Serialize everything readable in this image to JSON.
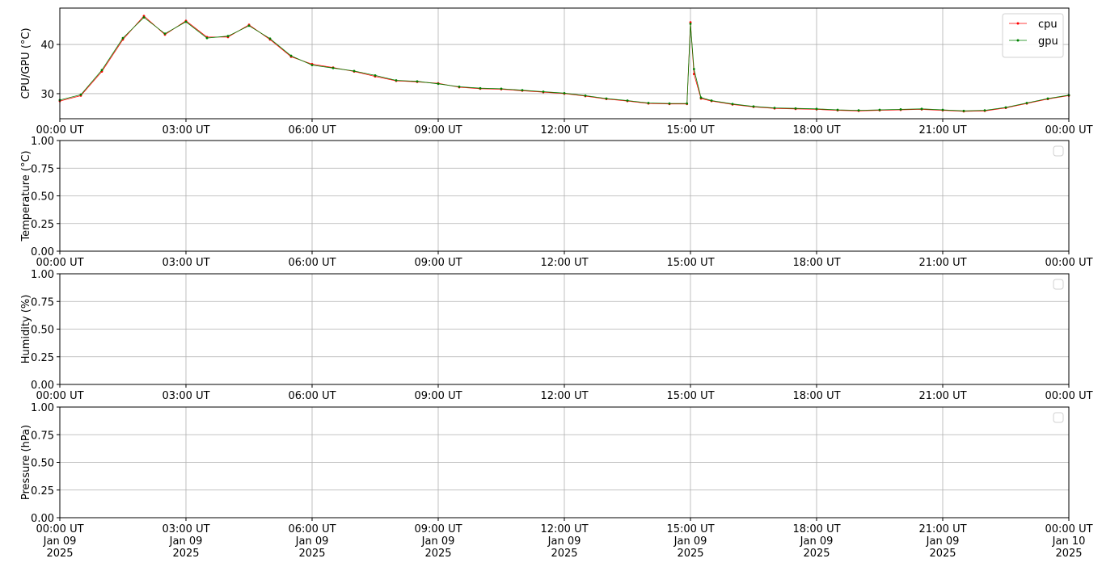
{
  "chart_data": [
    {
      "type": "line",
      "y_label": "CPU/GPU (°C)",
      "legend": "upper right",
      "grid": true,
      "xlim": [
        "2025-01-09T00:00",
        "2025-01-10T00:00"
      ],
      "xticks": [
        {
          "value": "2025-01-09T00:00",
          "label": "00:00 UT"
        },
        {
          "value": "2025-01-09T03:00",
          "label": "03:00 UT"
        },
        {
          "value": "2025-01-09T06:00",
          "label": "06:00 UT"
        },
        {
          "value": "2025-01-09T09:00",
          "label": "09:00 UT"
        },
        {
          "value": "2025-01-09T12:00",
          "label": "12:00 UT"
        },
        {
          "value": "2025-01-09T15:00",
          "label": "15:00 UT"
        },
        {
          "value": "2025-01-09T18:00",
          "label": "18:00 UT"
        },
        {
          "value": "2025-01-09T21:00",
          "label": "21:00 UT"
        },
        {
          "value": "2025-01-10T00:00",
          "label": "00:00 UT"
        }
      ],
      "ylim": [
        24.9,
        47.4
      ],
      "yticks": [
        30,
        40
      ],
      "x": [
        "2025-01-09T00:00",
        "2025-01-09T00:30",
        "2025-01-09T01:00",
        "2025-01-09T01:30",
        "2025-01-09T02:00",
        "2025-01-09T02:30",
        "2025-01-09T03:00",
        "2025-01-09T03:30",
        "2025-01-09T04:00",
        "2025-01-09T04:30",
        "2025-01-09T05:00",
        "2025-01-09T05:30",
        "2025-01-09T06:00",
        "2025-01-09T06:30",
        "2025-01-09T07:00",
        "2025-01-09T07:30",
        "2025-01-09T08:00",
        "2025-01-09T08:30",
        "2025-01-09T09:00",
        "2025-01-09T09:30",
        "2025-01-09T10:00",
        "2025-01-09T10:30",
        "2025-01-09T11:00",
        "2025-01-09T11:30",
        "2025-01-09T12:00",
        "2025-01-09T12:30",
        "2025-01-09T13:00",
        "2025-01-09T13:30",
        "2025-01-09T14:00",
        "2025-01-09T14:30",
        "2025-01-09T14:55",
        "2025-01-09T15:00",
        "2025-01-09T15:05",
        "2025-01-09T15:15",
        "2025-01-09T15:30",
        "2025-01-09T16:00",
        "2025-01-09T16:30",
        "2025-01-09T17:00",
        "2025-01-09T17:30",
        "2025-01-09T18:00",
        "2025-01-09T18:30",
        "2025-01-09T19:00",
        "2025-01-09T19:30",
        "2025-01-09T20:00",
        "2025-01-09T20:30",
        "2025-01-09T21:00",
        "2025-01-09T21:30",
        "2025-01-09T22:00",
        "2025-01-09T22:30",
        "2025-01-09T23:00",
        "2025-01-09T23:30",
        "2025-01-10T00:00"
      ],
      "series": [
        {
          "name": "cpu",
          "color": "#ff0000",
          "values": [
            28.5,
            29.6,
            34.5,
            41.0,
            45.8,
            42.0,
            44.8,
            41.5,
            41.5,
            44.0,
            41.0,
            37.5,
            36.0,
            35.3,
            34.5,
            33.5,
            32.6,
            32.4,
            32.1,
            31.3,
            31.0,
            30.9,
            30.6,
            30.3,
            30.0,
            29.5,
            28.9,
            28.5,
            28.0,
            27.9,
            27.9,
            44.5,
            34.0,
            29.0,
            28.5,
            27.8,
            27.3,
            27.0,
            26.9,
            26.8,
            26.6,
            26.5,
            26.6,
            26.7,
            26.8,
            26.6,
            26.4,
            26.5,
            27.1,
            28.0,
            28.9,
            29.6
          ]
        },
        {
          "name": "gpu",
          "color": "#008000",
          "values": [
            28.7,
            29.8,
            34.8,
            41.3,
            45.5,
            42.2,
            44.6,
            41.3,
            41.7,
            43.8,
            41.2,
            37.7,
            35.8,
            35.2,
            34.6,
            33.7,
            32.7,
            32.5,
            32.0,
            31.4,
            31.1,
            31.0,
            30.7,
            30.4,
            30.1,
            29.6,
            29.0,
            28.6,
            28.1,
            28.0,
            28.0,
            44.2,
            35.0,
            29.2,
            28.6,
            27.9,
            27.4,
            27.1,
            27.0,
            26.9,
            26.7,
            26.6,
            26.7,
            26.8,
            26.9,
            26.7,
            26.5,
            26.6,
            27.2,
            28.1,
            29.0,
            29.7
          ]
        }
      ]
    },
    {
      "type": "line",
      "y_label": "Temperature (°C)",
      "legend": "upper right",
      "grid": true,
      "xlim": [
        "2025-01-09T00:00",
        "2025-01-10T00:00"
      ],
      "xticks": [
        {
          "value": "2025-01-09T00:00",
          "label": "00:00 UT"
        },
        {
          "value": "2025-01-09T03:00",
          "label": "03:00 UT"
        },
        {
          "value": "2025-01-09T06:00",
          "label": "06:00 UT"
        },
        {
          "value": "2025-01-09T09:00",
          "label": "09:00 UT"
        },
        {
          "value": "2025-01-09T12:00",
          "label": "12:00 UT"
        },
        {
          "value": "2025-01-09T15:00",
          "label": "15:00 UT"
        },
        {
          "value": "2025-01-09T18:00",
          "label": "18:00 UT"
        },
        {
          "value": "2025-01-09T21:00",
          "label": "21:00 UT"
        },
        {
          "value": "2025-01-10T00:00",
          "label": "00:00 UT"
        }
      ],
      "ylim": [
        0,
        1
      ],
      "yticks": [
        {
          "value": 0,
          "label": "0.00"
        },
        {
          "value": 0.25,
          "label": "0.25"
        },
        {
          "value": 0.5,
          "label": "0.50"
        },
        {
          "value": 0.75,
          "label": "0.75"
        },
        {
          "value": 1,
          "label": "1.00"
        }
      ],
      "series": []
    },
    {
      "type": "line",
      "y_label": "Humidity (%)",
      "legend": "upper right",
      "grid": true,
      "xlim": [
        "2025-01-09T00:00",
        "2025-01-10T00:00"
      ],
      "xticks": [
        {
          "value": "2025-01-09T00:00",
          "label": "00:00 UT"
        },
        {
          "value": "2025-01-09T03:00",
          "label": "03:00 UT"
        },
        {
          "value": "2025-01-09T06:00",
          "label": "06:00 UT"
        },
        {
          "value": "2025-01-09T09:00",
          "label": "09:00 UT"
        },
        {
          "value": "2025-01-09T12:00",
          "label": "12:00 UT"
        },
        {
          "value": "2025-01-09T15:00",
          "label": "15:00 UT"
        },
        {
          "value": "2025-01-09T18:00",
          "label": "18:00 UT"
        },
        {
          "value": "2025-01-09T21:00",
          "label": "21:00 UT"
        },
        {
          "value": "2025-01-10T00:00",
          "label": "00:00 UT"
        }
      ],
      "ylim": [
        0,
        1
      ],
      "yticks": [
        {
          "value": 0,
          "label": "0.00"
        },
        {
          "value": 0.25,
          "label": "0.25"
        },
        {
          "value": 0.5,
          "label": "0.50"
        },
        {
          "value": 0.75,
          "label": "0.75"
        },
        {
          "value": 1,
          "label": "1.00"
        }
      ],
      "series": []
    },
    {
      "type": "line",
      "y_label": "Pressure (hPa)",
      "legend": "upper right",
      "grid": true,
      "xlim": [
        "2025-01-09T00:00",
        "2025-01-10T00:00"
      ],
      "xticks": [
        {
          "value": "2025-01-09T00:00",
          "label": "00:00 UT\nJan 09\n2025"
        },
        {
          "value": "2025-01-09T03:00",
          "label": "03:00 UT\nJan 09\n2025"
        },
        {
          "value": "2025-01-09T06:00",
          "label": "06:00 UT\nJan 09\n2025"
        },
        {
          "value": "2025-01-09T09:00",
          "label": "09:00 UT\nJan 09\n2025"
        },
        {
          "value": "2025-01-09T12:00",
          "label": "12:00 UT\nJan 09\n2025"
        },
        {
          "value": "2025-01-09T15:00",
          "label": "15:00 UT\nJan 09\n2025"
        },
        {
          "value": "2025-01-09T18:00",
          "label": "18:00 UT\nJan 09\n2025"
        },
        {
          "value": "2025-01-09T21:00",
          "label": "21:00 UT\nJan 09\n2025"
        },
        {
          "value": "2025-01-10T00:00",
          "label": "00:00 UT\nJan 10\n2025"
        }
      ],
      "ylim": [
        0,
        1
      ],
      "yticks": [
        {
          "value": 0,
          "label": "0.00"
        },
        {
          "value": 0.25,
          "label": "0.25"
        },
        {
          "value": 0.5,
          "label": "0.50"
        },
        {
          "value": 0.75,
          "label": "0.75"
        },
        {
          "value": 1,
          "label": "1.00"
        }
      ],
      "series": []
    }
  ]
}
